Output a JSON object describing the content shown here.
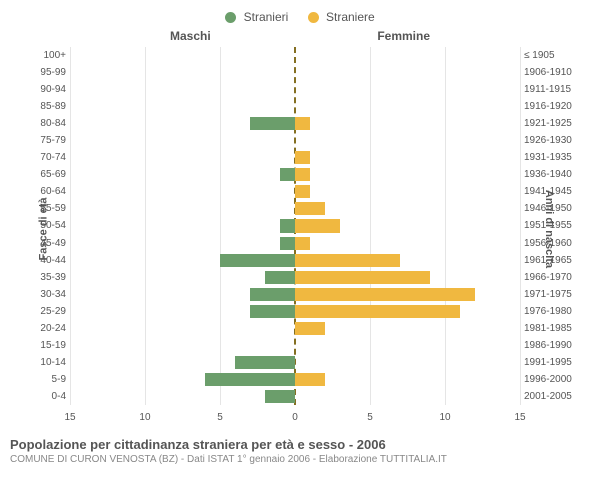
{
  "legend": {
    "male": {
      "label": "Stranieri",
      "color": "#6b9e6b"
    },
    "female": {
      "label": "Straniere",
      "color": "#f0b840"
    }
  },
  "headers": {
    "left": "Maschi",
    "right": "Femmine"
  },
  "axis_labels": {
    "left": "Fasce di età",
    "right": "Anni di nascita"
  },
  "chart": {
    "type": "population-pyramid",
    "x_max": 15,
    "x_ticks": [
      15,
      10,
      5,
      0,
      5,
      10,
      15
    ],
    "background_color": "#ffffff",
    "grid_color": "#e5e5e5",
    "axis_color": "#846f22",
    "rows": [
      {
        "age": "100+",
        "birth": "≤ 1905",
        "m": 0,
        "f": 0
      },
      {
        "age": "95-99",
        "birth": "1906-1910",
        "m": 0,
        "f": 0
      },
      {
        "age": "90-94",
        "birth": "1911-1915",
        "m": 0,
        "f": 0
      },
      {
        "age": "85-89",
        "birth": "1916-1920",
        "m": 0,
        "f": 0
      },
      {
        "age": "80-84",
        "birth": "1921-1925",
        "m": 3,
        "f": 1
      },
      {
        "age": "75-79",
        "birth": "1926-1930",
        "m": 0,
        "f": 0
      },
      {
        "age": "70-74",
        "birth": "1931-1935",
        "m": 0,
        "f": 1
      },
      {
        "age": "65-69",
        "birth": "1936-1940",
        "m": 1,
        "f": 1
      },
      {
        "age": "60-64",
        "birth": "1941-1945",
        "m": 0,
        "f": 1
      },
      {
        "age": "55-59",
        "birth": "1946-1950",
        "m": 0,
        "f": 2
      },
      {
        "age": "50-54",
        "birth": "1951-1955",
        "m": 1,
        "f": 3
      },
      {
        "age": "45-49",
        "birth": "1956-1960",
        "m": 1,
        "f": 1
      },
      {
        "age": "40-44",
        "birth": "1961-1965",
        "m": 5,
        "f": 7
      },
      {
        "age": "35-39",
        "birth": "1966-1970",
        "m": 2,
        "f": 9
      },
      {
        "age": "30-34",
        "birth": "1971-1975",
        "m": 3,
        "f": 12
      },
      {
        "age": "25-29",
        "birth": "1976-1980",
        "m": 3,
        "f": 11
      },
      {
        "age": "20-24",
        "birth": "1981-1985",
        "m": 0,
        "f": 2
      },
      {
        "age": "15-19",
        "birth": "1986-1990",
        "m": 0,
        "f": 0
      },
      {
        "age": "10-14",
        "birth": "1991-1995",
        "m": 4,
        "f": 0
      },
      {
        "age": "5-9",
        "birth": "1996-2000",
        "m": 6,
        "f": 2
      },
      {
        "age": "0-4",
        "birth": "2001-2005",
        "m": 2,
        "f": 0
      }
    ]
  },
  "footer": {
    "title": "Popolazione per cittadinanza straniera per età e sesso - 2006",
    "subtitle": "COMUNE DI CURON VENOSTA (BZ) - Dati ISTAT 1° gennaio 2006 - Elaborazione TUTTITALIA.IT"
  }
}
